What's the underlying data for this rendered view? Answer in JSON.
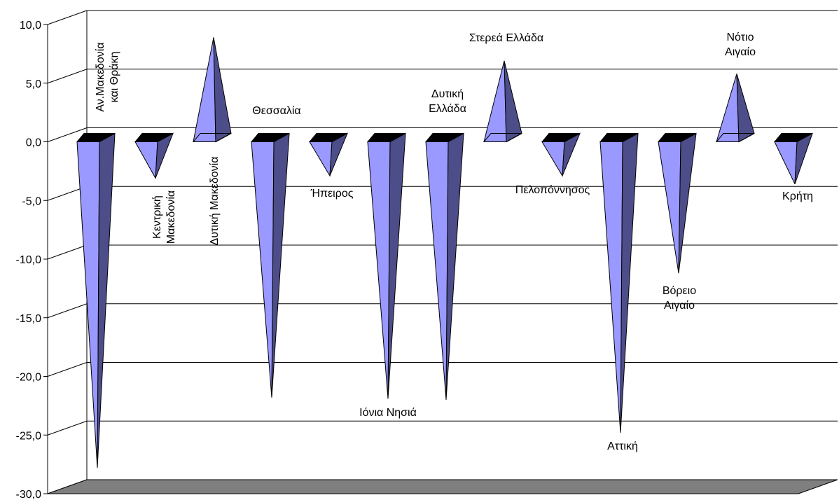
{
  "chart_data": {
    "type": "bar",
    "bar_shape": "pyramid-3d",
    "categories": [
      "Αν.Μακεδονία και Θράκη",
      "Κεντρική Μακεδονία",
      "Δυτική Μακεδονία",
      "Θεσσαλία",
      "Ήπειρος",
      "Ιόνια Νησιά",
      "Δυτική Ελλάδα",
      "Στερεά Ελλάδα",
      "Πελοπόννησος",
      "Αττική",
      "Βόρειο Αιγαίο",
      "Νότιο Αιγαίο",
      "Κρήτη"
    ],
    "values": [
      -27.8,
      -3.1,
      8.9,
      -21.8,
      -2.9,
      -21.9,
      -22.0,
      6.9,
      -2.9,
      -24.8,
      -11.2,
      5.8,
      -3.6
    ],
    "ylim": [
      -30,
      10
    ],
    "yticks": [
      "10,0",
      "5,0",
      "0,0",
      "-5,0",
      "-10,0",
      "-15,0",
      "-20,0",
      "-25,0",
      "-30,0"
    ],
    "grid": true,
    "title": "",
    "xlabel": "",
    "ylabel": "",
    "colors": {
      "face_light": "#9999ff",
      "face_dark": "#4d4d8a",
      "top": "#000000",
      "floor": "#7f7f7f",
      "grid": "#000000"
    }
  }
}
